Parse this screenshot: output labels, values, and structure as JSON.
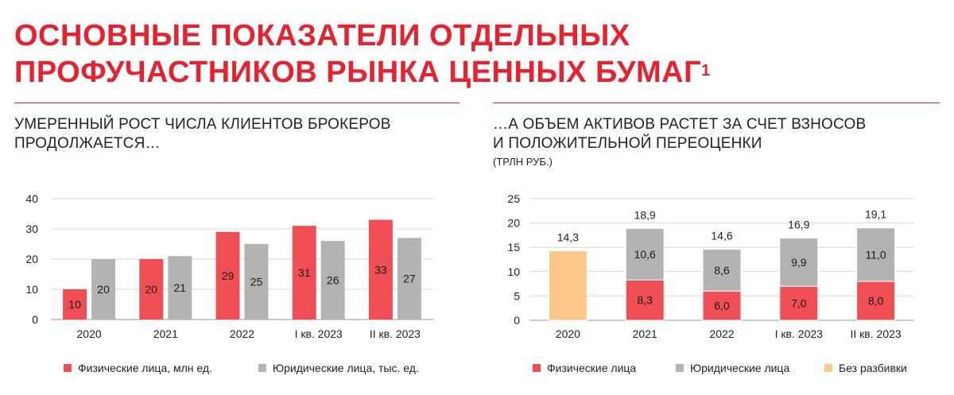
{
  "title_line1": "ОСНОВНЫЕ ПОКАЗАТЕЛИ ОТДЕЛЬНЫХ",
  "title_line2": "ПРОФУЧАСТНИКОВ РЫНКА ЦЕННЫХ БУМАГ",
  "title_footnote": "1",
  "left": {
    "subtitle_line1": "УМЕРЕННЫЙ РОСТ ЧИСЛА КЛИЕНТОВ БРОКЕРОВ",
    "subtitle_line2": "ПРОДОЛЖАЕТСЯ…",
    "legend": [
      {
        "label": "Физические лица, млн ед.",
        "color": "#f04e55"
      },
      {
        "label": "Юридические лица, тыс. ед.",
        "color": "#b3b3b3"
      }
    ]
  },
  "right": {
    "subtitle_line1": "…А ОБЪЕМ АКТИВОВ РАСТЕТ ЗА СЧЕТ ВЗНОСОВ",
    "subtitle_line2": "И ПОЛОЖИТЕЛЬНОЙ ПЕРЕОЦЕНКИ",
    "unit": "(ТРЛН РУБ.)",
    "legend": [
      {
        "label": "Физические лица",
        "color": "#f04e55"
      },
      {
        "label": "Юридические лица",
        "color": "#b3b3b3"
      },
      {
        "label": "Без разбивки",
        "color": "#fcc88a"
      }
    ]
  },
  "chart_data": [
    {
      "type": "bar",
      "categories": [
        "2020",
        "2021",
        "2022",
        "I кв. 2023",
        "II кв. 2023"
      ],
      "series": [
        {
          "name": "Физические лица, млн ед.",
          "color": "#f04e55",
          "values": [
            10,
            20,
            29,
            31,
            33
          ],
          "labels": [
            "10",
            "20",
            "29",
            "31",
            "33"
          ]
        },
        {
          "name": "Юридические лица, тыс. ед.",
          "color": "#b3b3b3",
          "values": [
            20,
            21,
            25,
            26,
            27
          ],
          "labels": [
            "20",
            "21",
            "25",
            "26",
            "27"
          ]
        }
      ],
      "ylim": [
        0,
        40
      ],
      "yticks": [
        "0",
        "10",
        "20",
        "30",
        "40"
      ],
      "grid": true
    },
    {
      "type": "bar",
      "stacked": true,
      "categories": [
        "2020",
        "2021",
        "2022",
        "I кв. 2023",
        "II кв. 2023"
      ],
      "series": [
        {
          "name": "Физические лица",
          "color": "#f04e55",
          "values": [
            0,
            8.3,
            6.0,
            7.0,
            8.0
          ],
          "labels": [
            "",
            "8,3",
            "6,0",
            "7,0",
            "8,0"
          ]
        },
        {
          "name": "Юридические лица",
          "color": "#b3b3b3",
          "values": [
            0,
            10.6,
            8.6,
            9.9,
            11.0
          ],
          "labels": [
            "",
            "10,6",
            "8,6",
            "9,9",
            "11,0"
          ]
        },
        {
          "name": "Без разбивки",
          "color": "#fcc88a",
          "values": [
            14.3,
            0,
            0,
            0,
            0
          ],
          "labels": [
            "",
            "",
            "",
            "",
            ""
          ]
        }
      ],
      "totals": [
        "14,3",
        "18,9",
        "14,6",
        "16,9",
        "19,1"
      ],
      "ylim": [
        0,
        25
      ],
      "yticks": [
        "0",
        "5",
        "10",
        "15",
        "20",
        "25"
      ],
      "grid": true
    }
  ]
}
